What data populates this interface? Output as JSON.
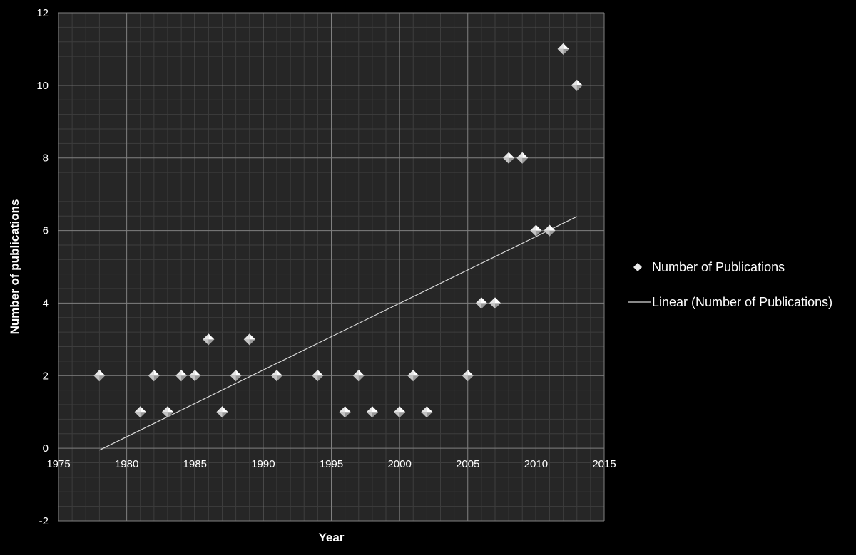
{
  "chart_data": {
    "type": "scatter",
    "title": "",
    "xlabel": "Year",
    "ylabel": "Number of publications",
    "xlim": [
      1975,
      2015
    ],
    "ylim": [
      -2,
      12
    ],
    "x_ticks": [
      1975,
      1980,
      1985,
      1990,
      1995,
      2000,
      2005,
      2010,
      2015
    ],
    "y_ticks": [
      -2,
      0,
      2,
      4,
      6,
      8,
      10,
      12
    ],
    "grid": true,
    "x_axis_crosses_at": 0,
    "legend_position": "right",
    "series": [
      {
        "name": "Number of Publications",
        "marker": "diamond",
        "color": "#f2f2f2",
        "x": [
          1978,
          1981,
          1982,
          1983,
          1984,
          1985,
          1986,
          1987,
          1988,
          1989,
          1991,
          1994,
          1996,
          1997,
          1998,
          2000,
          2001,
          2002,
          2005,
          2006,
          2007,
          2008,
          2009,
          2010,
          2011,
          2012,
          2013
        ],
        "y": [
          2,
          1,
          2,
          1,
          2,
          2,
          3,
          1,
          2,
          3,
          2,
          2,
          1,
          2,
          1,
          1,
          2,
          1,
          2,
          4,
          4,
          8,
          8,
          6,
          6,
          11,
          10
        ]
      }
    ],
    "trendline": {
      "name": "Linear (Number of Publications)",
      "type": "linear",
      "color": "#d9d9d9",
      "x_range": [
        1978,
        2013
      ]
    }
  },
  "colors": {
    "background": "#000000",
    "plot_area": "#262626",
    "grid_major": "#808080",
    "grid_minor": "#3d3d3d",
    "text": "#ffffff"
  }
}
